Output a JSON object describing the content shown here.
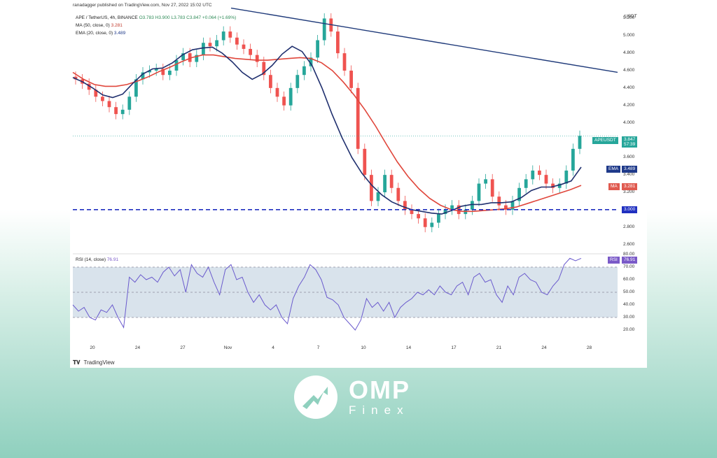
{
  "header": {
    "published": "ranadagger published on TradingView.com, Nov 27, 2022 15:02 UTC",
    "symbol": "APE / TetherUS, 4h, BINANCE",
    "ohlc": "O3.783 H3.900 L3.783 C3.847 +0.064 (+1.69%)",
    "ma_label": "MA (50, close, 0)",
    "ma_value": "3.281",
    "ema_label": "EMA (20, close, 0)",
    "ema_value": "3.489",
    "rsi_label": "RSI (14, close)",
    "rsi_value": "76.91"
  },
  "currency": "USDT",
  "badges": {
    "ape_name": "APEUSDT",
    "ape_price": "3.847",
    "ape_timer": "57:39",
    "ema_name": "EMA",
    "ema_val": "3.489",
    "ma_name": "MA",
    "ma_val": "3.281",
    "support": "3.000",
    "rsi_name": "RSI",
    "rsi_val": "76.91"
  },
  "footer": {
    "brand": "TradingView"
  },
  "logo": {
    "main": "OMP",
    "sub": "Finex"
  },
  "colors": {
    "up": "#26a69a",
    "down": "#ef5350",
    "ema": "#1f2f6e",
    "ma": "#e0463b",
    "trendline": "#1f3a7a",
    "support": "#2030c0",
    "rsi": "#6a5acd",
    "bg_bottom": "#8fd0be"
  },
  "chart_data": [
    {
      "type": "candlestick",
      "title": "APE / TetherUS, 4h, BINANCE",
      "ylabel": "USDT",
      "ylim": [
        2.5,
        5.3
      ],
      "yticks": [
        5.2,
        5.0,
        4.8,
        4.6,
        4.4,
        4.2,
        4.0,
        3.6,
        3.4,
        3.2,
        2.8,
        2.6
      ],
      "ytick_labels": [
        "5.200",
        "5.000",
        "4.800",
        "4.600",
        "4.400",
        "4.200",
        "4.000",
        "3.600",
        "3.400",
        "3.200",
        "2.800",
        "2.600"
      ],
      "xticks": [
        "20",
        "24",
        "27",
        "Nov",
        "4",
        "7",
        "10",
        "14",
        "17",
        "21",
        "24",
        "28"
      ],
      "close": [
        4.5,
        4.45,
        4.38,
        4.3,
        4.25,
        4.18,
        4.1,
        4.15,
        4.3,
        4.5,
        4.58,
        4.6,
        4.62,
        4.55,
        4.6,
        4.72,
        4.8,
        4.7,
        4.78,
        4.92,
        4.88,
        4.95,
        5.05,
        4.98,
        4.9,
        4.85,
        4.78,
        4.7,
        4.55,
        4.4,
        4.3,
        4.2,
        4.4,
        4.55,
        4.65,
        4.75,
        4.95,
        5.2,
        5.05,
        4.8,
        4.6,
        4.4,
        3.7,
        3.4,
        3.1,
        3.2,
        3.4,
        3.25,
        3.1,
        3.0,
        2.95,
        2.9,
        2.8,
        2.85,
        2.95,
        3.0,
        3.05,
        2.95,
        3.0,
        3.1,
        3.3,
        3.35,
        3.15,
        3.05,
        3.0,
        3.1,
        3.25,
        3.35,
        3.45,
        3.4,
        3.3,
        3.25,
        3.3,
        3.45,
        3.7,
        3.85
      ],
      "series": [
        {
          "name": "EMA (20, close, 0)",
          "values": [
            4.52,
            4.47,
            4.4,
            4.32,
            4.29,
            4.33,
            4.45,
            4.56,
            4.62,
            4.63,
            4.69,
            4.78,
            4.84,
            4.86,
            4.87,
            4.8,
            4.7,
            4.58,
            4.5,
            4.56,
            4.66,
            4.79,
            4.88,
            4.82,
            4.66,
            4.4,
            4.1,
            3.83,
            3.6,
            3.42,
            3.28,
            3.17,
            3.09,
            3.04,
            3.0,
            2.98,
            2.96,
            2.95,
            2.99,
            3.04,
            3.06,
            3.06,
            3.08,
            3.08,
            3.09,
            3.14,
            3.22,
            3.26,
            3.26,
            3.29,
            3.33,
            3.49
          ]
        },
        {
          "name": "MA (50, close, 0)",
          "values": [
            4.58,
            4.5,
            4.44,
            4.42,
            4.42,
            4.44,
            4.48,
            4.53,
            4.59,
            4.64,
            4.7,
            4.75,
            4.78,
            4.78,
            4.76,
            4.74,
            4.73,
            4.72,
            4.72,
            4.73,
            4.74,
            4.75,
            4.74,
            4.69,
            4.6,
            4.47,
            4.32,
            4.15,
            3.96,
            3.75,
            3.55,
            3.38,
            3.24,
            3.13,
            3.05,
            3.0,
            2.98,
            2.98,
            2.99,
            3.0,
            3.01,
            3.03,
            3.07,
            3.11,
            3.15,
            3.19,
            3.23,
            3.28
          ]
        },
        {
          "name": "Trendline",
          "values": [
            5.32,
            4.58
          ]
        },
        {
          "name": "Support",
          "values": [
            3.0
          ]
        }
      ]
    },
    {
      "type": "line",
      "title": "RSI (14, close)",
      "ylim": [
        10,
        80
      ],
      "yticks": [
        80,
        70,
        60,
        50,
        40,
        30,
        20
      ],
      "ytick_labels": [
        "80.00",
        "70.00",
        "60.00",
        "50.00",
        "40.00",
        "30.00",
        "20.00"
      ],
      "bands": [
        30,
        50,
        70
      ],
      "series": [
        {
          "name": "RSI (14, close)",
          "values": [
            40,
            35,
            38,
            30,
            28,
            36,
            34,
            40,
            30,
            22,
            62,
            58,
            64,
            60,
            62,
            58,
            66,
            70,
            63,
            68,
            50,
            72,
            65,
            62,
            70,
            58,
            48,
            68,
            72,
            60,
            62,
            50,
            42,
            48,
            40,
            36,
            40,
            30,
            25,
            45,
            55,
            62,
            72,
            68,
            60,
            46,
            44,
            40,
            30,
            25,
            20,
            28,
            45,
            38,
            42,
            35,
            42,
            30,
            38,
            42,
            45,
            50,
            48,
            52,
            48,
            55,
            50,
            48,
            55,
            58,
            48,
            62,
            65,
            58,
            60,
            48,
            42,
            55,
            48,
            62,
            65,
            60,
            58,
            50,
            48,
            55,
            60,
            72,
            77,
            75,
            77
          ]
        }
      ]
    }
  ]
}
